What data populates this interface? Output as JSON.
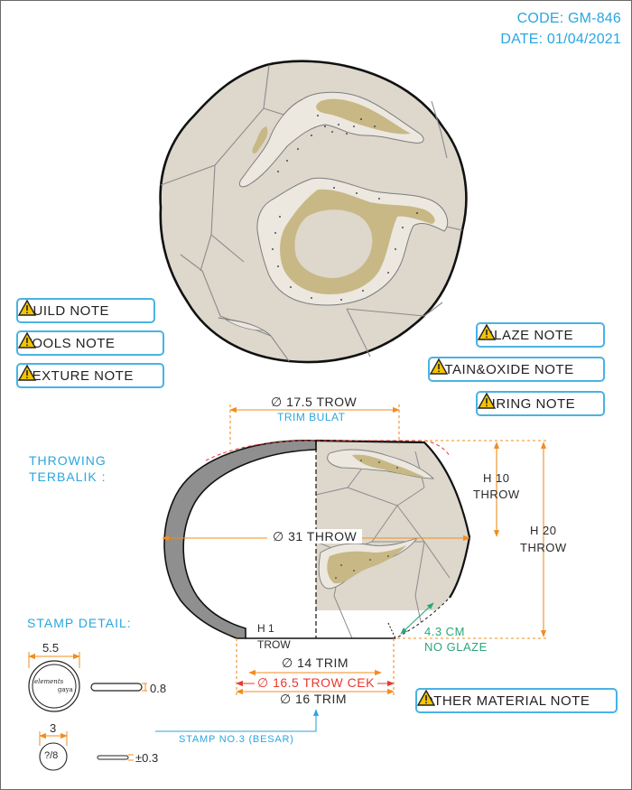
{
  "header": {
    "code": "CODE: GM-846",
    "date": "DATE: 01/04/2021"
  },
  "notes": {
    "build": "BUILD NOTE",
    "tools": "TOOLS NOTE",
    "texture": "TEXTURE NOTE",
    "glaze": "GLAZE NOTE",
    "stain_oxide": "STAIN&OXIDE NOTE",
    "firing": "FIRING NOTE",
    "other_material": "OTHER MATERIAL NOTE"
  },
  "profile": {
    "method_line1": "THROWING",
    "method_line2": "TERBALIK :",
    "top_opening": "∅ 17.5 TROW",
    "top_opening_sub": "TRIM BULAT",
    "max_diameter": "∅ 31 THROW",
    "h_small_value": "H 10",
    "h_small_label": "THROW",
    "h_total_value": "H 20",
    "h_total_label": "THROW",
    "foot_h_value": "H 1",
    "foot_h_label": "TROW",
    "foot_inner": "∅ 14 TRIM",
    "foot_check": "∅ 16.5 TROW CEK",
    "foot_outer": "∅ 16 TRIM",
    "no_glaze_value": "4.3 CM",
    "no_glaze_label": "NO GLAZE"
  },
  "stamp": {
    "title": "STAMP DETAIL:",
    "large_width": "5.5",
    "large_thickness": "0.8",
    "large_logo_line1": "elements",
    "large_logo_line2": "gaya",
    "small_width": "3",
    "small_thickness": "±0.3",
    "small_mark": "?/8",
    "callout": "STAMP NO.3 (BESAR)"
  },
  "colors": {
    "accent_blue": "#2aa6e0",
    "dimension_orange": "#f28c1e",
    "check_red": "#e8382e",
    "no_glaze_green": "#2aa67a",
    "clay_beige": "#ddd7cc",
    "glaze_olive": "#c7b886",
    "wall_gray": "#8f8f8f"
  }
}
